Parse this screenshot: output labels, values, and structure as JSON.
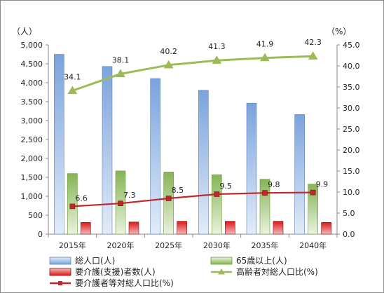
{
  "chart_data": {
    "type": "bar",
    "categories": [
      "2015年",
      "2020年",
      "2025年",
      "2030年",
      "2035年",
      "2040年"
    ],
    "y_left": {
      "unit": "（人）",
      "ylim": [
        0,
        5000
      ],
      "step": 500,
      "ticks": [
        "0",
        "500",
        "1,000",
        "1,500",
        "2,000",
        "2,500",
        "3,000",
        "3,500",
        "4,000",
        "4,500",
        "5,000"
      ]
    },
    "y_right": {
      "unit": "（%）",
      "ylim": [
        0,
        45
      ],
      "step": 5,
      "ticks": [
        "0.0",
        "5.0",
        "10.0",
        "15.0",
        "20.0",
        "25.0",
        "30.0",
        "35.0",
        "40.0",
        "45.0"
      ]
    },
    "series": [
      {
        "name": "総人口(人)",
        "kind": "bar",
        "axis": "left",
        "color": "#9dbde6",
        "values": [
          4750,
          4430,
          4110,
          3800,
          3460,
          3160
        ]
      },
      {
        "name": "65歳以上(人)",
        "kind": "bar",
        "axis": "left",
        "color": "#a3cc78",
        "values": [
          1600,
          1670,
          1640,
          1570,
          1450,
          1320
        ]
      },
      {
        "name": "要介護(支援)者数(人)",
        "kind": "bar",
        "axis": "left",
        "color": "#e02020",
        "values": [
          310,
          320,
          340,
          340,
          340,
          310
        ]
      },
      {
        "name": "高齢者対総人口比(%)",
        "kind": "line",
        "axis": "right",
        "color": "#9bbb59",
        "marker": "triangle",
        "values": [
          34.1,
          38.1,
          40.2,
          41.3,
          41.9,
          42.3
        ],
        "labels": [
          "34.1",
          "38.1",
          "40.2",
          "41.3",
          "41.9",
          "42.3"
        ]
      },
      {
        "name": "要介護者等対総人口比(%)",
        "kind": "line",
        "axis": "right",
        "color": "#c0282d",
        "marker": "square",
        "values": [
          6.6,
          7.3,
          8.5,
          9.5,
          9.8,
          9.9
        ],
        "labels": [
          "6.6",
          "7.3",
          "8.5",
          "9.5",
          "9.8",
          "9.9"
        ]
      }
    ],
    "grid": false,
    "legend": "bottom"
  }
}
